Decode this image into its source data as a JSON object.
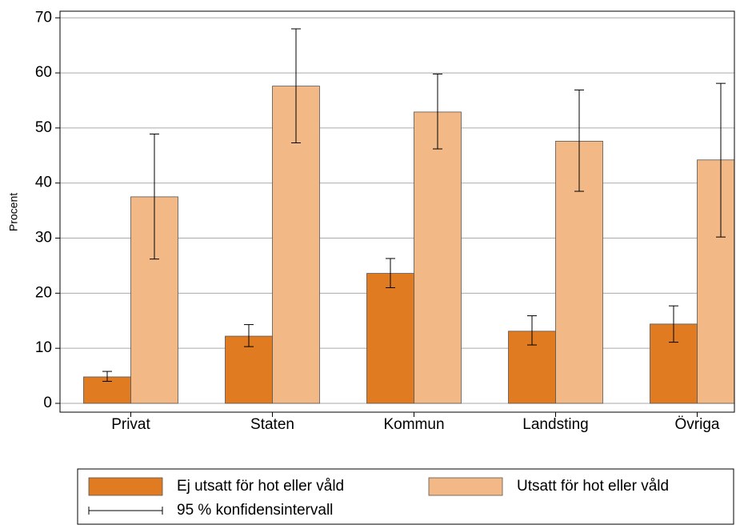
{
  "chart_data": {
    "type": "bar",
    "ylabel": "Procent",
    "categories": [
      "Privat",
      "Staten",
      "Kommun",
      "Landsting",
      "Övriga"
    ],
    "series": [
      {
        "name": "Ej utsatt för hot eller våld",
        "color": "#e07b22",
        "values": [
          4.8,
          12.2,
          23.6,
          13.1,
          14.4
        ],
        "lower": [
          4.0,
          10.3,
          21.0,
          10.6,
          11.1
        ],
        "upper": [
          5.8,
          14.3,
          26.3,
          15.9,
          17.7
        ]
      },
      {
        "name": "Utsatt för hot eller våld",
        "color": "#f2b987",
        "values": [
          37.5,
          57.6,
          52.9,
          47.6,
          44.2
        ],
        "lower": [
          26.2,
          47.3,
          46.2,
          38.5,
          30.2
        ],
        "upper": [
          48.9,
          68.0,
          59.8,
          56.9,
          58.1
        ]
      }
    ],
    "ci_label": "95 % konfidensintervall",
    "ylim": [
      -1.6,
      71.2
    ],
    "yticks": [
      0,
      10,
      20,
      30,
      40,
      50,
      60,
      70
    ],
    "grid": true
  }
}
